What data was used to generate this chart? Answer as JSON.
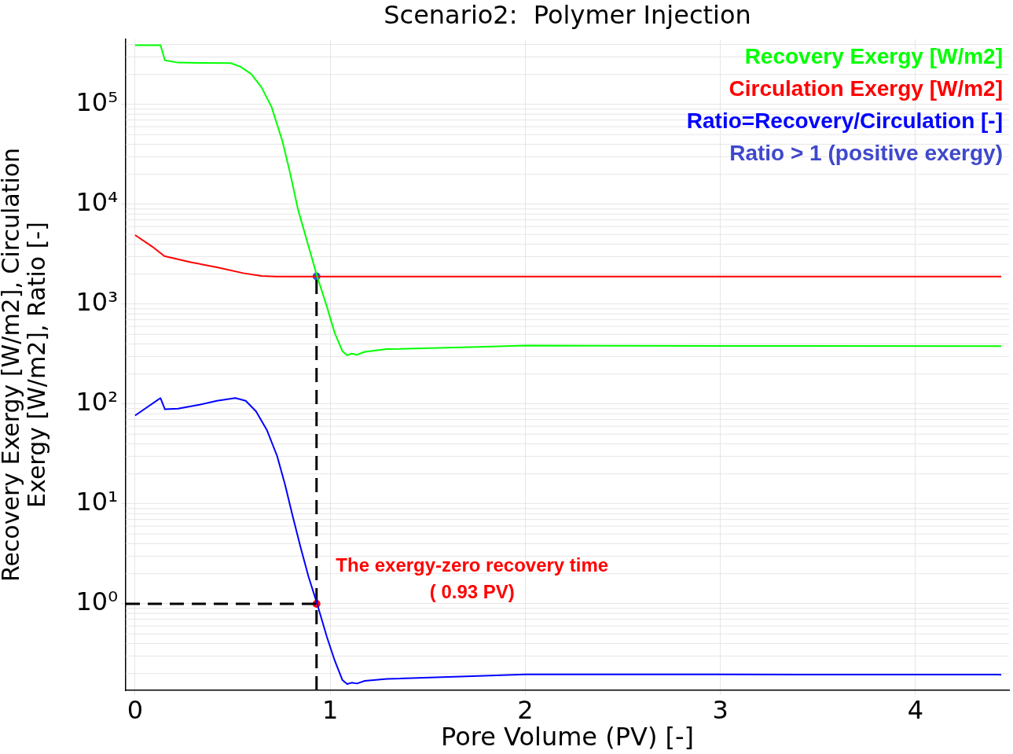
{
  "chart_data": {
    "type": "line",
    "title": "Scenario2:  Polymer Injection",
    "xlabel": "Pore Volume (PV) [-]",
    "ylabel": "Recovery Exergy [W/m2], Circulation Exergy [W/m2], Ratio [-]",
    "xlim": [
      -0.048,
      4.48
    ],
    "xticks": [
      0,
      1,
      2,
      3,
      4
    ],
    "ylim": [
      0.136,
      450000
    ],
    "yticks": [
      {
        "value": 1,
        "label": "10⁰"
      },
      {
        "value": 10,
        "label": "10¹"
      },
      {
        "value": 100,
        "label": "10²"
      },
      {
        "value": 1000,
        "label": "10³"
      },
      {
        "value": 10000,
        "label": "10⁴"
      },
      {
        "value": 100000,
        "label": "10⁵"
      }
    ],
    "log": "y",
    "grid": true,
    "legend": "top right",
    "marker": "none",
    "line_style": "solid",
    "series": [
      {
        "name": "Recovery Exergy [W/m2]",
        "color": "#00ff00",
        "x": [
          0,
          0.13,
          0.153,
          0.22,
          0.33,
          0.49,
          0.54,
          0.594,
          0.647,
          0.7,
          0.755,
          0.795,
          0.835,
          0.889,
          0.933,
          0.983,
          1.023,
          1.063,
          1.087,
          1.11,
          1.137,
          1.177,
          1.29,
          1.76,
          2,
          3,
          4.44
        ],
        "values": [
          393000,
          393000,
          277000,
          263000,
          261000,
          260000,
          239000,
          203000,
          150000,
          94000,
          43000,
          20400,
          8900,
          3800,
          1900,
          946,
          517,
          338,
          308,
          320,
          312,
          334,
          355,
          373,
          385,
          382,
          380
        ]
      },
      {
        "name": "Circulation Exergy [W/m2]",
        "color": "#ff0000",
        "x": [
          0,
          0.086,
          0.15,
          0.285,
          0.42,
          0.554,
          0.648,
          0.725,
          1,
          2,
          3,
          4.44
        ],
        "values": [
          4930,
          3800,
          3030,
          2640,
          2340,
          2050,
          1920,
          1890,
          1890,
          1890,
          1890,
          1890
        ]
      },
      {
        "name": "Ratio=Recovery/Circulation [-]",
        "color": "#0000ff",
        "x": [
          0,
          0.13,
          0.153,
          0.22,
          0.33,
          0.42,
          0.514,
          0.567,
          0.62,
          0.675,
          0.728,
          0.769,
          0.808,
          0.849,
          0.889,
          0.933,
          0.983,
          1.023,
          1.063,
          1.087,
          1.11,
          1.137,
          1.177,
          1.29,
          1.76,
          2,
          3,
          4.44
        ],
        "values": [
          76.8,
          115,
          88.7,
          90,
          98.5,
          108,
          115,
          108,
          84.5,
          55.3,
          30.2,
          15.5,
          7.5,
          3.64,
          1.87,
          1,
          0.467,
          0.271,
          0.172,
          0.157,
          0.162,
          0.159,
          0.169,
          0.177,
          0.189,
          0.196,
          0.196,
          0.195
        ]
      },
      {
        "type": "line",
        "color": "#000000",
        "line_style": "dashed",
        "x": [
          0.93,
          0.93
        ],
        "values": [
          0.136,
          1900
        ]
      },
      {
        "type": "line",
        "color": "#000000",
        "line_style": "dashed",
        "x": [
          -0.048,
          0.93
        ],
        "values": [
          1,
          1
        ]
      },
      {
        "type": "scatter",
        "color": "#3f48cc",
        "marker": "circle",
        "x": [
          0.93
        ],
        "values": [
          1900
        ]
      },
      {
        "type": "scatter",
        "color": "#ff0000",
        "marker": "circle",
        "x": [
          0.93
        ],
        "values": [
          1
        ]
      }
    ],
    "annotations": [
      "Ratio > 1 (positive exergy)",
      {
        "text": "The exergy-zero recovery time\n( 0.93 PV)",
        "x": 0.93,
        "y": 1
      }
    ]
  }
}
